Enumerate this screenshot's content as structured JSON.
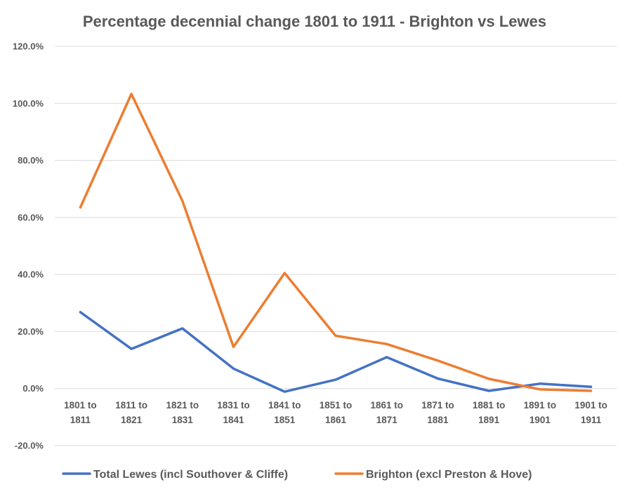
{
  "chart_data": {
    "type": "line",
    "title": "Percentage decennial change 1801 to 1911 - Brighton vs Lewes",
    "xlabel": "",
    "ylabel": "",
    "ylim": [
      -20,
      120
    ],
    "yticks": [
      -20,
      0,
      20,
      40,
      60,
      80,
      100,
      120
    ],
    "ytick_labels": [
      "-20.0%",
      "0.0%",
      "20.0%",
      "40.0%",
      "60.0%",
      "80.0%",
      "100.0%",
      "120.0%"
    ],
    "grid": true,
    "legend_position": "bottom",
    "categories": [
      [
        "1801 to",
        "1811"
      ],
      [
        "1811 to",
        "1821"
      ],
      [
        "1821 to",
        "1831"
      ],
      [
        "1831 to",
        "1841"
      ],
      [
        "1841 to",
        "1851"
      ],
      [
        "1851 to",
        "1861"
      ],
      [
        "1861 to",
        "1871"
      ],
      [
        "1871 to",
        "1881"
      ],
      [
        "1881 to",
        "1891"
      ],
      [
        "1891 to",
        "1901"
      ],
      [
        "1901 to",
        "1911"
      ]
    ],
    "series": [
      {
        "name": "Total Lewes (incl Southover & Cliffe)",
        "color": "#4472c4",
        "values": [
          26.8,
          13.9,
          21.1,
          7.0,
          -1.1,
          3.1,
          11.0,
          3.5,
          -0.8,
          1.7,
          0.6
        ]
      },
      {
        "name": "Brighton (excl Preston & Hove)",
        "color": "#ed7d31",
        "values": [
          63.5,
          103.3,
          65.8,
          14.6,
          40.5,
          18.5,
          15.6,
          9.8,
          3.4,
          -0.3,
          -0.8
        ]
      }
    ]
  }
}
